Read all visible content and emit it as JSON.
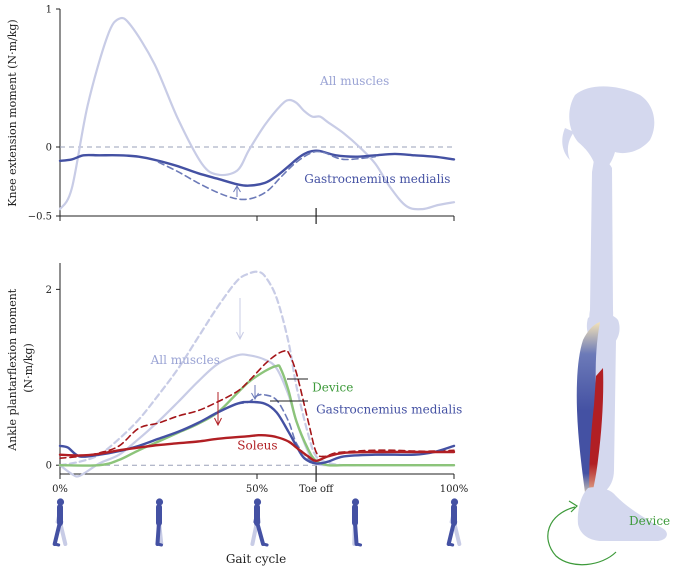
{
  "colors": {
    "all_muscles": "#c8cce6",
    "all_muscles_label": "#9aa3d4",
    "gastrocnemius": "#4451a3",
    "gastrocnemius_dashed": "#6c7ab8",
    "device": "#8cc47a",
    "device_label": "#3d9a3a",
    "soleus": "#b11f24",
    "soleus_dashed": "#a4161a",
    "body": "#d4d8ee",
    "reference_line": "#9aa0b8"
  },
  "icons": [
    "walking-figure-icon",
    "leg-skeleton-icon",
    "rotation-arrow-icon"
  ],
  "chart_data": [
    {
      "type": "line",
      "ylabel": "Knee extension moment (N·m/kg)",
      "xlim": [
        0,
        100
      ],
      "ylim": [
        -0.5,
        1
      ],
      "yticks": [
        -0.5,
        0,
        1
      ],
      "ytick_labels": [
        "−0.5",
        "0",
        "1"
      ],
      "xticks": [
        0,
        50,
        100
      ],
      "toe_off_x": 65,
      "reference_y": 0,
      "grid": false,
      "series": [
        {
          "name": "All muscles",
          "key": "all_muscles",
          "style": "solid",
          "x": [
            0,
            3,
            7,
            12,
            15,
            18,
            24,
            30,
            36,
            40,
            45,
            48,
            52,
            56,
            58,
            60,
            62,
            64,
            66,
            68,
            72,
            76,
            80,
            84,
            88,
            92,
            96,
            100
          ],
          "y": [
            -0.45,
            -0.3,
            0.3,
            0.8,
            0.93,
            0.88,
            0.6,
            0.2,
            -0.12,
            -0.2,
            -0.17,
            -0.02,
            0.16,
            0.3,
            0.34,
            0.32,
            0.26,
            0.22,
            0.22,
            0.18,
            0.1,
            0.0,
            -0.12,
            -0.3,
            -0.43,
            -0.45,
            -0.42,
            -0.4
          ]
        },
        {
          "name": "Gastrocnemius medialis",
          "key": "gastrocnemius",
          "style": "solid",
          "x": [
            0,
            3,
            6,
            10,
            15,
            20,
            25,
            30,
            35,
            40,
            45,
            48,
            52,
            55,
            58,
            60,
            62,
            64,
            66,
            70,
            75,
            80,
            85,
            90,
            95,
            100
          ],
          "y": [
            -0.1,
            -0.09,
            -0.06,
            -0.06,
            -0.06,
            -0.07,
            -0.1,
            -0.14,
            -0.19,
            -0.23,
            -0.27,
            -0.28,
            -0.26,
            -0.21,
            -0.14,
            -0.09,
            -0.05,
            -0.03,
            -0.03,
            -0.06,
            -0.07,
            -0.06,
            -0.05,
            -0.06,
            -0.07,
            -0.09
          ]
        },
        {
          "name": "",
          "key": "gastrocnemius_dashed",
          "style": "dashed",
          "x": [
            25,
            30,
            35,
            40,
            44,
            47,
            50,
            53,
            56,
            60,
            64,
            67,
            72,
            80
          ],
          "y": [
            -0.11,
            -0.18,
            -0.26,
            -0.33,
            -0.37,
            -0.38,
            -0.36,
            -0.31,
            -0.22,
            -0.11,
            -0.04,
            -0.04,
            -0.09,
            -0.07
          ]
        }
      ],
      "annotations": [
        {
          "text": "All muscles",
          "key": "all_muscles_label",
          "x": 66,
          "y": 0.45
        },
        {
          "text": "Gastrocnemius medialis",
          "key": "gastrocnemius",
          "x": 62,
          "y": -0.26
        }
      ]
    },
    {
      "type": "line",
      "ylabel": "Ankle plantarflexion moment (N·m/kg)",
      "xlabel": "Gait cycle",
      "xlim": [
        0,
        100
      ],
      "ylim": [
        -0.1,
        2.3
      ],
      "yticks": [
        0,
        2
      ],
      "ytick_labels": [
        "0",
        "2"
      ],
      "xticks": [
        0,
        50,
        100
      ],
      "xtick_labels": [
        "0%",
        "50%",
        "100%"
      ],
      "toe_off_x": 65,
      "toe_off_label": "Toe off",
      "reference_y": 0,
      "grid": false,
      "series": [
        {
          "name": "All muscles",
          "key": "all_muscles",
          "style": "dashed",
          "x": [
            0,
            5,
            10,
            15,
            20,
            25,
            30,
            35,
            40,
            45,
            48,
            50,
            52,
            55,
            58,
            60,
            63,
            65,
            68,
            72,
            80,
            90,
            100
          ],
          "y": [
            0.0,
            0.04,
            0.12,
            0.3,
            0.52,
            0.8,
            1.1,
            1.45,
            1.8,
            2.1,
            2.18,
            2.2,
            2.15,
            1.9,
            1.4,
            0.9,
            0.35,
            0.1,
            0.03,
            0.0,
            0.0,
            0.0,
            0.0
          ]
        },
        {
          "name": "All muscles",
          "key": "all_muscles",
          "style": "solid",
          "x": [
            0,
            3,
            5,
            10,
            15,
            20,
            25,
            30,
            35,
            40,
            45,
            48,
            52,
            55,
            58,
            60,
            63,
            65,
            68,
            72,
            80,
            90,
            100
          ],
          "y": [
            0.0,
            -0.1,
            -0.12,
            0.02,
            0.12,
            0.3,
            0.5,
            0.72,
            0.95,
            1.15,
            1.25,
            1.25,
            1.2,
            1.1,
            0.8,
            0.5,
            0.15,
            0.02,
            0.0,
            0.0,
            0.0,
            0.0,
            0.0
          ]
        },
        {
          "name": "Device",
          "key": "device",
          "style": "solid",
          "x": [
            0,
            10,
            15,
            20,
            25,
            30,
            35,
            40,
            45,
            48,
            52,
            55,
            56,
            58,
            60,
            63,
            65,
            68,
            72,
            80,
            90,
            100
          ],
          "y": [
            0.0,
            0.0,
            0.06,
            0.17,
            0.27,
            0.37,
            0.47,
            0.6,
            0.82,
            0.95,
            1.07,
            1.13,
            1.1,
            0.85,
            0.5,
            0.18,
            0.05,
            0.0,
            0.0,
            0.0,
            0.0,
            0.0
          ]
        },
        {
          "name": "",
          "key": "soleus_dashed",
          "style": "dashed",
          "x": [
            0,
            5,
            10,
            15,
            20,
            25,
            30,
            35,
            40,
            45,
            48,
            52,
            55,
            57,
            58,
            60,
            63,
            65,
            67,
            70,
            75,
            80,
            85,
            90,
            95,
            100
          ],
          "y": [
            0.08,
            0.1,
            0.14,
            0.22,
            0.42,
            0.48,
            0.56,
            0.62,
            0.72,
            0.84,
            0.96,
            1.15,
            1.26,
            1.3,
            1.28,
            1.05,
            0.5,
            0.15,
            0.1,
            0.14,
            0.16,
            0.17,
            0.17,
            0.16,
            0.16,
            0.17
          ]
        },
        {
          "name": "",
          "key": "gastrocnemius_dashed",
          "style": "dashed",
          "x": [
            45,
            48,
            50,
            52,
            55,
            58,
            60,
            63,
            65
          ],
          "y": [
            0.7,
            0.72,
            0.79,
            0.8,
            0.74,
            0.5,
            0.25,
            0.08,
            0.04
          ]
        },
        {
          "name": "Gastrocnemius medialis",
          "key": "gastrocnemius",
          "style": "solid",
          "x": [
            0,
            2,
            5,
            10,
            15,
            20,
            25,
            30,
            35,
            40,
            45,
            48,
            52,
            55,
            58,
            60,
            62,
            65,
            68,
            72,
            80,
            90,
            95,
            100
          ],
          "y": [
            0.22,
            0.2,
            0.1,
            0.12,
            0.16,
            0.22,
            0.3,
            0.38,
            0.48,
            0.6,
            0.7,
            0.72,
            0.7,
            0.6,
            0.38,
            0.22,
            0.08,
            0.02,
            0.04,
            0.1,
            0.12,
            0.12,
            0.15,
            0.22
          ]
        },
        {
          "name": "Soleus",
          "key": "soleus",
          "style": "solid",
          "x": [
            0,
            5,
            10,
            15,
            20,
            25,
            30,
            35,
            40,
            45,
            48,
            50,
            52,
            55,
            58,
            60,
            63,
            65,
            68,
            72,
            80,
            90,
            100
          ],
          "y": [
            0.12,
            0.11,
            0.13,
            0.17,
            0.2,
            0.23,
            0.25,
            0.27,
            0.3,
            0.32,
            0.33,
            0.34,
            0.34,
            0.32,
            0.27,
            0.2,
            0.1,
            0.05,
            0.1,
            0.14,
            0.15,
            0.15,
            0.15
          ]
        }
      ],
      "annotations": [
        {
          "text": "All muscles",
          "key": "all_muscles_label",
          "x": 23,
          "y": 1.15
        },
        {
          "text": "Device",
          "key": "device_label",
          "x": 64,
          "y": 0.84
        },
        {
          "text": "Gastrocnemius medialis",
          "key": "gastrocnemius",
          "x": 65,
          "y": 0.59
        },
        {
          "text": "Soleus",
          "key": "soleus",
          "x": 45,
          "y": 0.18
        }
      ]
    }
  ],
  "device_label": "Device"
}
